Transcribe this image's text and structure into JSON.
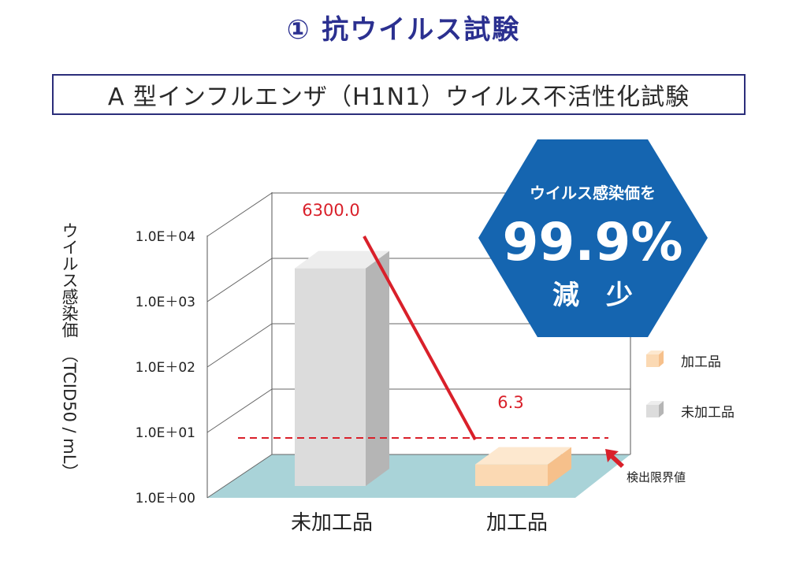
{
  "title": "① 抗ウイルス試験",
  "subtitle": "A 型インフルエンザ（H1N1）ウイルス不活性化試験",
  "colors": {
    "title": "#2b3090",
    "box_border": "#2b2d7a",
    "untreated": "#dcdcdc",
    "treated": "#fbd9b3",
    "floor": "#a9d3d8",
    "line": "#d9202a",
    "hexagon": "#1565b0"
  },
  "chart_data": {
    "type": "bar",
    "ylabel": "ウイルス感染価　（TCID50 / mL）",
    "y_scale": "log",
    "ylim": [
      1,
      10000
    ],
    "yticks": [
      "1.0E＋04",
      "1.0E＋03",
      "1.0E＋02",
      "1.0E＋01",
      "1.0E＋00"
    ],
    "categories": [
      "未加工品",
      "加工品"
    ],
    "values": [
      6300.0,
      6.3
    ],
    "data_labels": [
      "6300.0",
      "6.3"
    ],
    "legend": [
      "加工品",
      "未加工品"
    ],
    "legend_position": "right",
    "detection_limit_label": "検出限界値",
    "grid": true
  },
  "badge": {
    "line1": "ウイルス感染価を",
    "value": "99.9%",
    "line3": "減　少"
  }
}
